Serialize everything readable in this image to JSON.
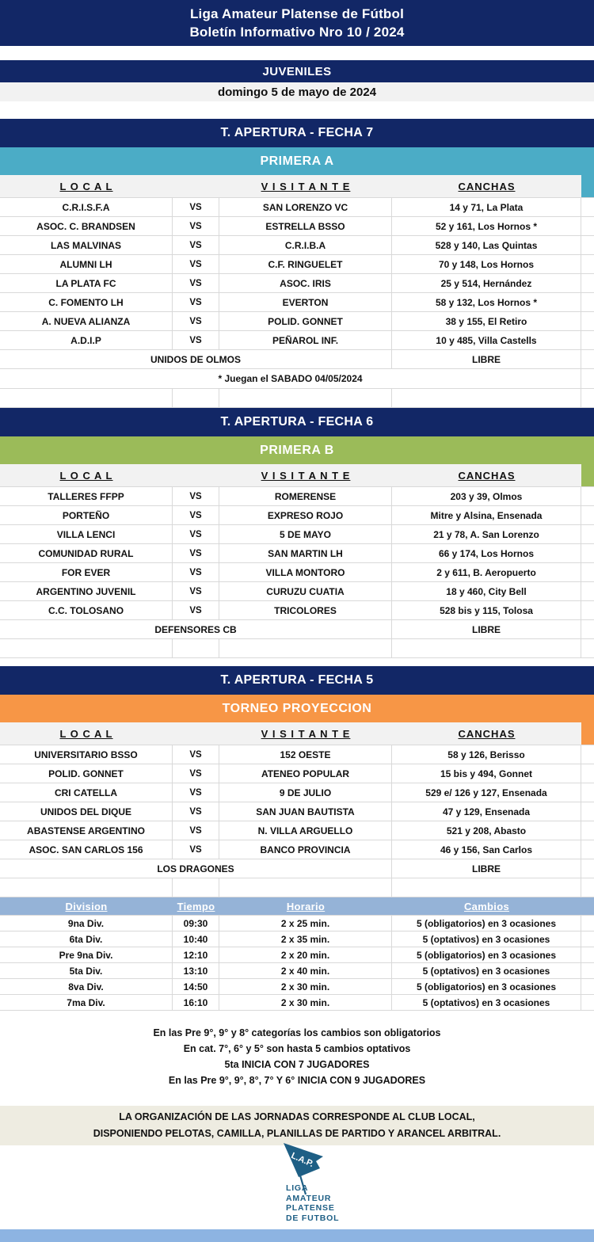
{
  "header": {
    "line1": "Liga Amateur Platense de Fútbol",
    "line2": "Boletín Informativo Nro 10 / 2024"
  },
  "category_banner": "JUVENILES",
  "date_banner": "domingo 5 de mayo de 2024",
  "columns": {
    "local": "L O C A L",
    "visitante": "V I S I T A N T E",
    "canchas": "CANCHAS",
    "vs": "VS"
  },
  "sections": [
    {
      "round": "T. APERTURA - FECHA 7",
      "division": "PRIMERA A",
      "accent": "#4BACC6",
      "matches": [
        {
          "local": "C.R.I.S.F.A",
          "visitante": "SAN LORENZO VC",
          "cancha": "14 y 71, La Plata"
        },
        {
          "local": "ASOC. C. BRANDSEN",
          "visitante": "ESTRELLA BSSO",
          "cancha": "52 y 161, Los Hornos *"
        },
        {
          "local": "LAS MALVINAS",
          "visitante": "C.R.I.B.A",
          "cancha": "528 y 140, Las Quintas"
        },
        {
          "local": "ALUMNI LH",
          "visitante": "C.F. RINGUELET",
          "cancha": "70 y 148, Los Hornos"
        },
        {
          "local": "LA PLATA FC",
          "visitante": "ASOC. IRIS",
          "cancha": "25 y  514, Hernández"
        },
        {
          "local": "C. FOMENTO LH",
          "visitante": "EVERTON",
          "cancha": "58 y 132, Los Hornos *"
        },
        {
          "local": "A. NUEVA ALIANZA",
          "visitante": "POLID. GONNET",
          "cancha": "38 y 155, El Retiro"
        },
        {
          "local": "A.D.I.P",
          "visitante": "PEÑAROL INF.",
          "cancha": "10  y 485, Villa Castells"
        }
      ],
      "free_team": "UNIDOS DE OLMOS",
      "free_label": "LIBRE",
      "note": "* Juegan el SABADO 04/05/2024"
    },
    {
      "round": "T. APERTURA - FECHA 6",
      "division": "PRIMERA B",
      "accent": "#9BBB59",
      "matches": [
        {
          "local": "TALLERES FFPP",
          "visitante": "ROMERENSE",
          "cancha": "203 y 39, Olmos"
        },
        {
          "local": "PORTEÑO",
          "visitante": "EXPRESO ROJO",
          "cancha": "Mitre y Alsina, Ensenada"
        },
        {
          "local": "VILLA LENCI",
          "visitante": "5 DE MAYO",
          "cancha": "21  y 78, A. San Lorenzo"
        },
        {
          "local": "COMUNIDAD RURAL",
          "visitante": "SAN MARTIN LH",
          "cancha": "66 y 174, Los Hornos"
        },
        {
          "local": "FOR EVER",
          "visitante": "VILLA MONTORO",
          "cancha": "2 y 611, B. Aeropuerto"
        },
        {
          "local": "ARGENTINO JUVENIL",
          "visitante": "CURUZU CUATIA",
          "cancha": "18 y 460, City Bell"
        },
        {
          "local": "C.C. TOLOSANO",
          "visitante": "TRICOLORES",
          "cancha": "528  bis y 115, Tolosa"
        }
      ],
      "free_team": "DEFENSORES CB",
      "free_label": "LIBRE",
      "note": ""
    },
    {
      "round": "T. APERTURA - FECHA 5",
      "division": "TORNEO PROYECCION",
      "accent": "#F79646",
      "matches": [
        {
          "local": "UNIVERSITARIO BSSO",
          "visitante": "152 OESTE",
          "cancha": "58 y 126, Berisso"
        },
        {
          "local": "POLID. GONNET",
          "visitante": "ATENEO POPULAR",
          "cancha": "15 bis y 494, Gonnet"
        },
        {
          "local": "CRI CATELLA",
          "visitante": "9 DE JULIO",
          "cancha": "529 e/ 126 y 127, Ensenada"
        },
        {
          "local": "UNIDOS DEL DIQUE",
          "visitante": "SAN JUAN BAUTISTA",
          "cancha": "47 y 129, Ensenada"
        },
        {
          "local": "ABASTENSE ARGENTINO",
          "visitante": "N. VILLA ARGUELLO",
          "cancha": "521 y 208, Abasto"
        },
        {
          "local": "ASOC. SAN CARLOS 156",
          "visitante": "BANCO PROVINCIA",
          "cancha": "46 y 156, San Carlos"
        }
      ],
      "free_team": "LOS DRAGONES",
      "free_label": "LIBRE",
      "note": ""
    }
  ],
  "schedule": {
    "headers": [
      "Division",
      "Tiempo",
      "Horario",
      "Cambios"
    ],
    "rows": [
      [
        "9na Div.",
        "09:30",
        "2 x 25 min.",
        "5 (obligatorios) en 3 ocasiones"
      ],
      [
        "6ta Div.",
        "10:40",
        "2 x 35 min.",
        "5 (optativos) en 3 ocasiones"
      ],
      [
        "Pre 9na Div.",
        "12:10",
        "2 x 20 min.",
        "5 (obligatorios) en 3 ocasiones"
      ],
      [
        "5ta Div.",
        "13:10",
        "2 x 40 min.",
        "5 (optativos) en 3 ocasiones"
      ],
      [
        "8va Div.",
        "14:50",
        "2 x 30 min.",
        "5 (obligatorios) en 3 ocasiones"
      ],
      [
        "7ma Div.",
        "16:10",
        "2 x 30 min.",
        "5 (optativos) en 3 ocasiones"
      ]
    ]
  },
  "notes": [
    "En las Pre 9°, 9° y 8° categorías los cambios son obligatorios",
    "En cat. 7°, 6° y 5° son hasta 5 cambios optativos",
    "5ta INICIA CON 7 JUGADORES",
    "En las Pre 9°, 9°,  8°, 7° Y  6° INICIA CON 9 JUGADORES"
  ],
  "organization": [
    "LA ORGANIZACIÓN DE LAS JORNADAS CORRESPONDE AL CLUB LOCAL,",
    "DISPONIENDO PELOTAS, CAMILLA, PLANILLAS DE PARTIDO Y ARANCEL ARBITRAL."
  ],
  "logo": {
    "flag_text": "L.A.P.",
    "lines": [
      "LIGA",
      "AMATEUR",
      "PLATENSE",
      "DE FUTBOL"
    ]
  },
  "colors": {
    "navy": "#122766",
    "primera_a": "#4BACC6",
    "primera_b": "#9BBB59",
    "proyeccion": "#F79646",
    "schedule_header": "#95B3D7",
    "bottom_band": "#8DB4E2",
    "gray_band": "#F2F2F2",
    "org_band": "#EEECE1",
    "logo_blue": "#1E5F85",
    "grid_border": "#D9D9D9"
  }
}
